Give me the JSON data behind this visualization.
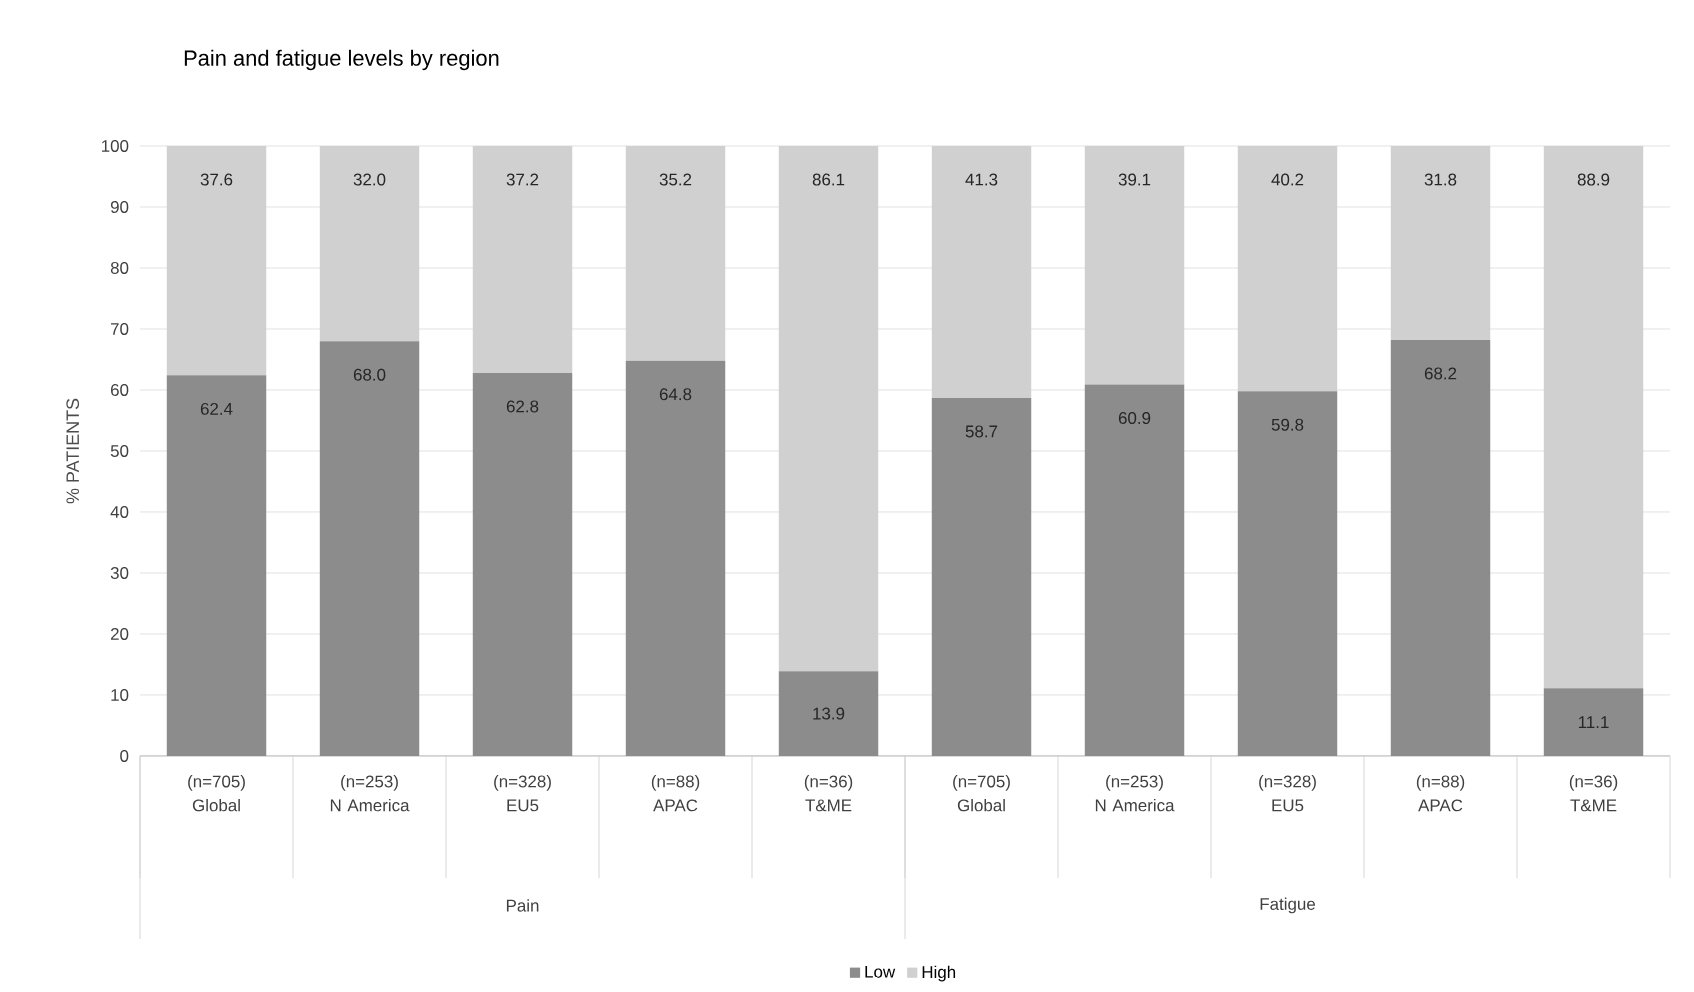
{
  "chart_data": {
    "type": "bar",
    "title": "Pain and fatigue levels by region",
    "ylabel": "% PATIENTS",
    "categories": [
      "(n=705) Global",
      "(n=253) N America",
      "(n=328) EU5",
      "(n=88) APAC",
      "(n=36) T&ME",
      "(n=705) Global",
      "(n=253) N America",
      "(n=328) EU5",
      "(n=88) APAC",
      "(n=36) T&ME"
    ],
    "series": [
      {
        "name": "Low",
        "color": "#8c8c8c",
        "values": [
          62.4,
          68.0,
          62.8,
          64.8,
          13.9,
          58.7,
          60.9,
          59.8,
          68.2,
          11.1
        ],
        "value_labels": [
          "62.4",
          "68.0",
          "62.8",
          "64.8",
          "13.9",
          "58.7",
          "60.9",
          "59.8",
          "68.2",
          "11.1"
        ]
      },
      {
        "name": "High",
        "color": "#d0d0d0",
        "values": [
          37.6,
          32.0,
          37.2,
          35.2,
          86.1,
          41.3,
          39.1,
          40.2,
          31.8,
          88.9
        ],
        "value_labels": [
          "37.6",
          "32.0",
          "37.2",
          "35.2",
          "86.1",
          "41.3",
          "39.1",
          "40.2",
          "31.8",
          "88.9"
        ]
      }
    ],
    "stacked": true,
    "ylim": [
      0,
      100
    ],
    "yticks": [
      0,
      10,
      20,
      30,
      40,
      50,
      60,
      70,
      80,
      90,
      100
    ],
    "grid": "y",
    "legend": "bottom",
    "annotations": [
      "Pain",
      "Fatigue"
    ]
  }
}
